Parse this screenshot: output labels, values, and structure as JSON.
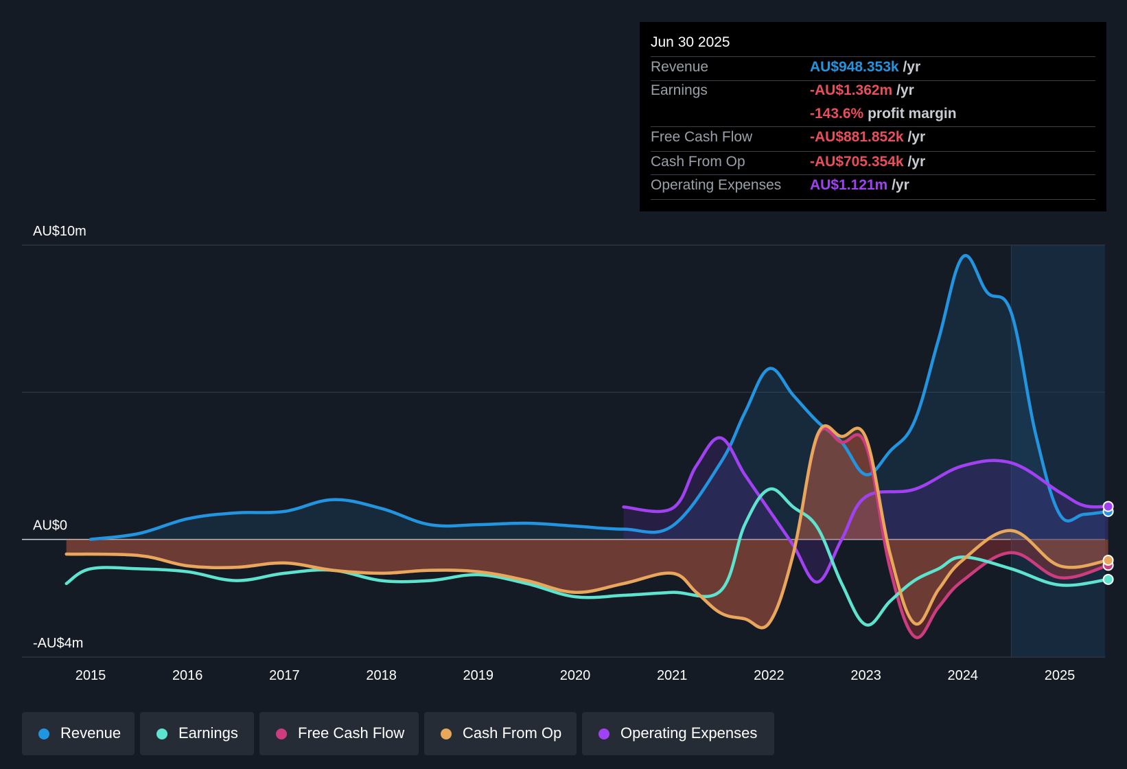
{
  "tooltip": {
    "date": "Jun 30 2025",
    "revenue": {
      "label": "Revenue",
      "value": "AU$948.353k",
      "unit": "/yr"
    },
    "earnings": {
      "label": "Earnings",
      "value": "-AU$1.362m",
      "unit": "/yr"
    },
    "margin": {
      "value": "-143.6%",
      "unit": "profit margin"
    },
    "fcf": {
      "label": "Free Cash Flow",
      "value": "-AU$881.852k",
      "unit": "/yr"
    },
    "cfo": {
      "label": "Cash From Op",
      "value": "-AU$705.354k",
      "unit": "/yr"
    },
    "opex": {
      "label": "Operating Expenses",
      "value": "AU$1.121m",
      "unit": "/yr"
    }
  },
  "legend": [
    "Revenue",
    "Earnings",
    "Free Cash Flow",
    "Cash From Op",
    "Operating Expenses"
  ],
  "colors": {
    "revenue": "#2394df",
    "earnings": "#5ee3cf",
    "fcf": "#cc3d7f",
    "cfo": "#e8a85c",
    "opex": "#a142f2",
    "bg": "#151b24",
    "up": "#e84e5c",
    "down": "#e84e5c"
  },
  "chart_data": {
    "type": "area",
    "title": "",
    "ylim": [
      -4,
      10
    ],
    "y_ticks": [
      {
        "v": 10,
        "label": "AU$10m"
      },
      {
        "v": 5,
        "label": ""
      },
      {
        "v": 0,
        "label": "AU$0"
      },
      {
        "v": -4,
        "label": "-AU$4m"
      }
    ],
    "x_ticks": [
      2015,
      2016,
      2017,
      2018,
      2019,
      2020,
      2021,
      2022,
      2023,
      2024,
      2025
    ],
    "xlim": [
      2014.3,
      2025.5
    ],
    "forecast_start": 2024.5,
    "series": [
      {
        "name": "Revenue",
        "key": "revenue",
        "points": [
          [
            2015,
            0.0
          ],
          [
            2015.5,
            0.2
          ],
          [
            2016,
            0.7
          ],
          [
            2016.5,
            0.9
          ],
          [
            2017,
            0.95
          ],
          [
            2017.5,
            1.35
          ],
          [
            2018,
            1.05
          ],
          [
            2018.5,
            0.5
          ],
          [
            2019,
            0.5
          ],
          [
            2019.5,
            0.55
          ],
          [
            2020,
            0.45
          ],
          [
            2020.5,
            0.35
          ],
          [
            2021,
            0.45
          ],
          [
            2021.5,
            2.6
          ],
          [
            2021.75,
            4.3
          ],
          [
            2022,
            5.8
          ],
          [
            2022.25,
            4.9
          ],
          [
            2022.5,
            4.0
          ],
          [
            2022.75,
            3.3
          ],
          [
            2023,
            2.2
          ],
          [
            2023.25,
            3.0
          ],
          [
            2023.5,
            4.0
          ],
          [
            2023.75,
            6.8
          ],
          [
            2024,
            9.6
          ],
          [
            2024.25,
            8.4
          ],
          [
            2024.5,
            7.7
          ],
          [
            2024.75,
            3.6
          ],
          [
            2025,
            0.85
          ],
          [
            2025.25,
            0.85
          ],
          [
            2025.5,
            0.95
          ]
        ]
      },
      {
        "name": "Earnings",
        "key": "earnings",
        "points": [
          [
            2014.75,
            -1.5
          ],
          [
            2015,
            -1.0
          ],
          [
            2015.5,
            -1.0
          ],
          [
            2016,
            -1.1
          ],
          [
            2016.5,
            -1.4
          ],
          [
            2017,
            -1.15
          ],
          [
            2017.5,
            -1.05
          ],
          [
            2018,
            -1.4
          ],
          [
            2018.5,
            -1.4
          ],
          [
            2019,
            -1.2
          ],
          [
            2019.5,
            -1.5
          ],
          [
            2020,
            -1.95
          ],
          [
            2020.5,
            -1.9
          ],
          [
            2021,
            -1.8
          ],
          [
            2021.5,
            -1.75
          ],
          [
            2021.75,
            0.5
          ],
          [
            2022,
            1.7
          ],
          [
            2022.25,
            1.1
          ],
          [
            2022.5,
            0.4
          ],
          [
            2022.75,
            -1.5
          ],
          [
            2023,
            -2.9
          ],
          [
            2023.25,
            -2.1
          ],
          [
            2023.5,
            -1.4
          ],
          [
            2023.75,
            -1.0
          ],
          [
            2024,
            -0.6
          ],
          [
            2024.5,
            -1.0
          ],
          [
            2025,
            -1.55
          ],
          [
            2025.5,
            -1.36
          ]
        ]
      },
      {
        "name": "Free Cash Flow",
        "key": "fcf",
        "points": [
          [
            2014.75,
            -0.5
          ],
          [
            2015.5,
            -0.55
          ],
          [
            2016,
            -0.9
          ],
          [
            2016.5,
            -0.95
          ],
          [
            2017,
            -0.8
          ],
          [
            2017.5,
            -1.05
          ],
          [
            2018,
            -1.15
          ],
          [
            2018.5,
            -1.05
          ],
          [
            2019,
            -1.1
          ],
          [
            2019.5,
            -1.4
          ],
          [
            2020,
            -1.8
          ],
          [
            2020.5,
            -1.5
          ],
          [
            2021,
            -1.15
          ],
          [
            2021.25,
            -1.8
          ],
          [
            2021.5,
            -2.5
          ],
          [
            2021.75,
            -2.7
          ],
          [
            2022,
            -2.85
          ],
          [
            2022.25,
            -0.5
          ],
          [
            2022.5,
            3.5
          ],
          [
            2022.75,
            3.3
          ],
          [
            2023,
            3.2
          ],
          [
            2023.25,
            -1.0
          ],
          [
            2023.5,
            -3.3
          ],
          [
            2023.75,
            -2.3
          ],
          [
            2024,
            -1.4
          ],
          [
            2024.5,
            -0.45
          ],
          [
            2025,
            -1.3
          ],
          [
            2025.5,
            -0.88
          ]
        ]
      },
      {
        "name": "Cash From Op",
        "key": "cfo",
        "points": [
          [
            2014.75,
            -0.5
          ],
          [
            2015.5,
            -0.55
          ],
          [
            2016,
            -0.9
          ],
          [
            2016.5,
            -0.95
          ],
          [
            2017,
            -0.8
          ],
          [
            2017.5,
            -1.05
          ],
          [
            2018,
            -1.15
          ],
          [
            2018.5,
            -1.05
          ],
          [
            2019,
            -1.1
          ],
          [
            2019.5,
            -1.4
          ],
          [
            2020,
            -1.8
          ],
          [
            2020.5,
            -1.5
          ],
          [
            2021,
            -1.15
          ],
          [
            2021.25,
            -1.8
          ],
          [
            2021.5,
            -2.5
          ],
          [
            2021.75,
            -2.7
          ],
          [
            2022,
            -2.85
          ],
          [
            2022.25,
            -0.5
          ],
          [
            2022.5,
            3.55
          ],
          [
            2022.75,
            3.5
          ],
          [
            2023,
            3.45
          ],
          [
            2023.25,
            -0.5
          ],
          [
            2023.5,
            -2.85
          ],
          [
            2023.75,
            -1.7
          ],
          [
            2024,
            -0.7
          ],
          [
            2024.5,
            0.3
          ],
          [
            2025,
            -0.9
          ],
          [
            2025.5,
            -0.71
          ]
        ]
      },
      {
        "name": "Operating Expenses",
        "key": "opex",
        "points": [
          [
            2020.5,
            1.1
          ],
          [
            2021,
            1.05
          ],
          [
            2021.25,
            2.5
          ],
          [
            2021.5,
            3.45
          ],
          [
            2021.75,
            2.2
          ],
          [
            2022,
            1.0
          ],
          [
            2022.25,
            -0.2
          ],
          [
            2022.5,
            -1.45
          ],
          [
            2022.75,
            0.0
          ],
          [
            2023,
            1.45
          ],
          [
            2023.5,
            1.7
          ],
          [
            2024,
            2.5
          ],
          [
            2024.5,
            2.6
          ],
          [
            2025,
            1.6
          ],
          [
            2025.25,
            1.15
          ],
          [
            2025.5,
            1.12
          ]
        ]
      }
    ]
  }
}
